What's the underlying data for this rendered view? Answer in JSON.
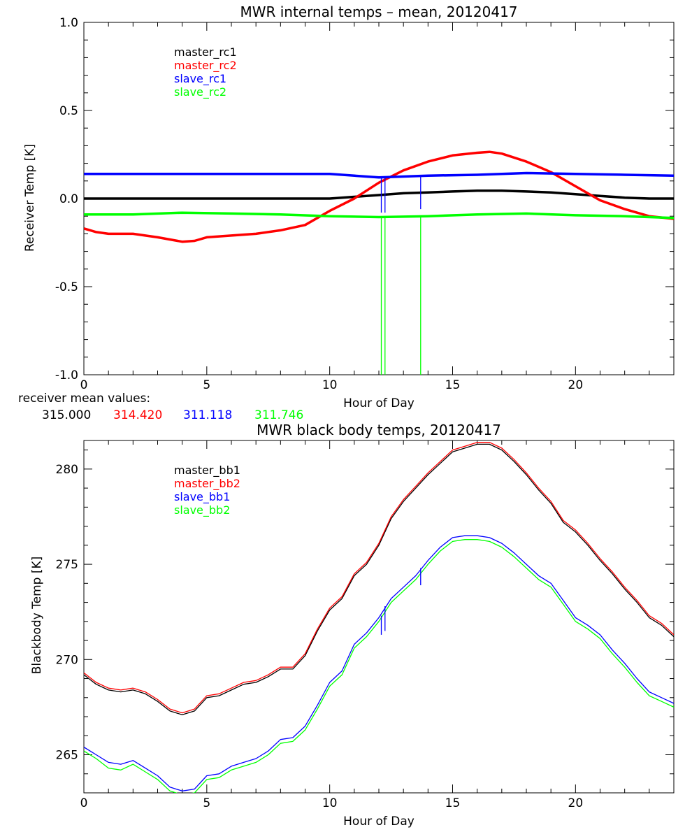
{
  "receiver_mean": {
    "label": "receiver mean values:",
    "values": [
      "315.000",
      "314.420",
      "311.118",
      "311.746"
    ]
  },
  "chart_data": [
    {
      "type": "line",
      "title": "MWR internal temps – mean, 20120417",
      "xlabel": "Hour of Day",
      "ylabel": "Receiver Temp [K]",
      "xlim": [
        0,
        24
      ],
      "ylim": [
        -1.0,
        1.0
      ],
      "xticks": [
        "0",
        "5",
        "10",
        "15",
        "20"
      ],
      "yticks": [
        "-1.0",
        "-0.5",
        "0.0",
        "0.5",
        "1.0"
      ],
      "legend_position": "top-left",
      "grid": false,
      "series": [
        {
          "name": "master_rc1",
          "color": "#000000",
          "x": [
            0,
            2,
            4,
            6,
            8,
            10,
            11,
            12,
            13,
            14,
            15,
            16,
            17,
            18,
            19,
            20,
            21,
            22,
            23,
            24
          ],
          "y": [
            0.0,
            0.0,
            0.0,
            0.0,
            0.0,
            0.0,
            0.01,
            0.02,
            0.03,
            0.035,
            0.04,
            0.045,
            0.045,
            0.04,
            0.035,
            0.025,
            0.015,
            0.005,
            0.0,
            0.0
          ]
        },
        {
          "name": "master_rc2",
          "color": "#ff0000",
          "x": [
            0,
            0.5,
            1,
            2,
            3,
            4,
            4.5,
            5,
            6,
            7,
            8,
            9,
            10,
            11,
            12,
            13,
            14,
            15,
            16,
            16.5,
            17,
            18,
            19,
            20,
            21,
            22,
            23,
            24
          ],
          "y": [
            -0.17,
            -0.19,
            -0.2,
            -0.2,
            -0.22,
            -0.245,
            -0.24,
            -0.22,
            -0.21,
            -0.2,
            -0.18,
            -0.15,
            -0.07,
            0.0,
            0.09,
            0.16,
            0.21,
            0.245,
            0.26,
            0.265,
            0.255,
            0.21,
            0.15,
            0.07,
            -0.01,
            -0.06,
            -0.1,
            -0.115
          ]
        },
        {
          "name": "slave_rc1",
          "color": "#0000ff",
          "x": [
            0,
            2,
            4,
            6,
            8,
            10,
            12,
            13,
            14,
            16,
            18,
            20,
            22,
            24
          ],
          "y": [
            0.14,
            0.14,
            0.14,
            0.14,
            0.14,
            0.14,
            0.12,
            0.125,
            0.13,
            0.135,
            0.145,
            0.14,
            0.135,
            0.13
          ]
        },
        {
          "name": "slave_rc2",
          "color": "#00ff00",
          "x": [
            0,
            2,
            4,
            6,
            8,
            10,
            12,
            14,
            16,
            18,
            20,
            22,
            24
          ],
          "y": [
            -0.09,
            -0.09,
            -0.08,
            -0.085,
            -0.09,
            -0.1,
            -0.105,
            -0.1,
            -0.09,
            -0.085,
            -0.095,
            -0.1,
            -0.11
          ]
        }
      ],
      "spikes": [
        {
          "color": "#00ff00",
          "x": 12.1,
          "y_from": -0.1,
          "y_to": -1.0
        },
        {
          "color": "#00ff00",
          "x": 12.25,
          "y_from": -0.1,
          "y_to": -1.0
        },
        {
          "color": "#00ff00",
          "x": 13.7,
          "y_from": -0.1,
          "y_to": -1.0
        },
        {
          "color": "#0000ff",
          "x": 12.1,
          "y_from": 0.12,
          "y_to": -0.08
        },
        {
          "color": "#0000ff",
          "x": 12.25,
          "y_from": 0.12,
          "y_to": -0.08
        },
        {
          "color": "#0000ff",
          "x": 13.7,
          "y_from": 0.13,
          "y_to": -0.06
        }
      ]
    },
    {
      "type": "line",
      "title": "MWR black body temps, 20120417",
      "xlabel": "Hour of Day",
      "ylabel": "Blackbody Temp [K]",
      "xlim": [
        0,
        24
      ],
      "ylim": [
        263,
        281.5
      ],
      "xticks": [
        "0",
        "5",
        "10",
        "15",
        "20"
      ],
      "yticks": [
        "265",
        "270",
        "275",
        "280"
      ],
      "legend_position": "top-left",
      "grid": false,
      "series": [
        {
          "name": "master_bb1",
          "color": "#000000",
          "x": [
            0,
            0.5,
            1,
            1.5,
            2,
            2.5,
            3,
            3.5,
            4,
            4.5,
            5,
            5.5,
            6,
            6.5,
            7,
            7.5,
            8,
            8.5,
            9,
            9.5,
            10,
            10.5,
            11,
            11.5,
            12,
            12.5,
            13,
            13.5,
            14,
            14.5,
            15,
            15.5,
            16,
            16.5,
            17,
            17.5,
            18,
            18.5,
            19,
            19.5,
            20,
            20.5,
            21,
            21.5,
            22,
            22.5,
            23,
            23.5,
            24
          ],
          "y": [
            269.2,
            268.7,
            268.4,
            268.3,
            268.4,
            268.2,
            267.8,
            267.3,
            267.1,
            267.3,
            268.0,
            268.1,
            268.4,
            268.7,
            268.8,
            269.1,
            269.5,
            269.5,
            270.2,
            271.5,
            272.6,
            273.2,
            274.4,
            275.0,
            276.0,
            277.4,
            278.3,
            279.0,
            279.7,
            280.3,
            280.9,
            281.1,
            281.3,
            281.3,
            281.0,
            280.4,
            279.7,
            278.9,
            278.2,
            277.2,
            276.7,
            276.0,
            275.2,
            274.5,
            273.7,
            273.0,
            272.2,
            271.8,
            271.2
          ]
        },
        {
          "name": "master_bb2",
          "color": "#ff0000",
          "x": [
            0,
            0.5,
            1,
            1.5,
            2,
            2.5,
            3,
            3.5,
            4,
            4.5,
            5,
            5.5,
            6,
            6.5,
            7,
            7.5,
            8,
            8.5,
            9,
            9.5,
            10,
            10.5,
            11,
            11.5,
            12,
            12.5,
            13,
            13.5,
            14,
            14.5,
            15,
            15.5,
            16,
            16.5,
            17,
            17.5,
            18,
            18.5,
            19,
            19.5,
            20,
            20.5,
            21,
            21.5,
            22,
            22.5,
            23,
            23.5,
            24
          ],
          "y": [
            269.3,
            268.8,
            268.5,
            268.4,
            268.5,
            268.3,
            267.9,
            267.4,
            267.2,
            267.4,
            268.1,
            268.2,
            268.5,
            268.8,
            268.9,
            269.2,
            269.6,
            269.6,
            270.3,
            271.6,
            272.7,
            273.3,
            274.5,
            275.1,
            276.1,
            277.5,
            278.4,
            279.1,
            279.8,
            280.4,
            281.0,
            281.2,
            281.4,
            281.4,
            281.1,
            280.5,
            279.8,
            279.0,
            278.3,
            277.3,
            276.8,
            276.1,
            275.3,
            274.6,
            273.8,
            273.1,
            272.3,
            271.9,
            271.3
          ]
        },
        {
          "name": "slave_bb1",
          "color": "#0000ff",
          "x": [
            0,
            0.5,
            1,
            1.5,
            2,
            2.5,
            3,
            3.5,
            4,
            4.5,
            5,
            5.5,
            6,
            6.5,
            7,
            7.5,
            8,
            8.5,
            9,
            9.5,
            10,
            10.5,
            11,
            11.5,
            12,
            12.5,
            13,
            13.5,
            14,
            14.5,
            15,
            15.5,
            16,
            16.5,
            17,
            17.5,
            18,
            18.5,
            19,
            19.5,
            20,
            20.5,
            21,
            21.5,
            22,
            22.5,
            23,
            23.5,
            24
          ],
          "y": [
            265.4,
            265.0,
            264.6,
            264.5,
            264.7,
            264.3,
            263.9,
            263.3,
            263.1,
            263.2,
            263.9,
            264.0,
            264.4,
            264.6,
            264.8,
            265.2,
            265.8,
            265.9,
            266.5,
            267.6,
            268.8,
            269.4,
            270.8,
            271.4,
            272.2,
            273.2,
            273.8,
            274.4,
            275.2,
            275.9,
            276.4,
            276.5,
            276.5,
            276.4,
            276.1,
            275.6,
            275.0,
            274.4,
            274.0,
            273.1,
            272.2,
            271.8,
            271.3,
            270.5,
            269.8,
            269.0,
            268.3,
            268.0,
            267.7
          ]
        },
        {
          "name": "slave_bb2",
          "color": "#00ff00",
          "x": [
            0,
            0.5,
            1,
            1.5,
            2,
            2.5,
            3,
            3.5,
            4,
            4.5,
            5,
            5.5,
            6,
            6.5,
            7,
            7.5,
            8,
            8.5,
            9,
            9.5,
            10,
            10.5,
            11,
            11.5,
            12,
            12.5,
            13,
            13.5,
            14,
            14.5,
            15,
            15.5,
            16,
            16.5,
            17,
            17.5,
            18,
            18.5,
            19,
            19.5,
            20,
            20.5,
            21,
            21.5,
            22,
            22.5,
            23,
            23.5,
            24
          ],
          "y": [
            265.2,
            264.8,
            264.3,
            264.2,
            264.5,
            264.1,
            263.7,
            263.1,
            262.9,
            263.0,
            263.7,
            263.8,
            264.2,
            264.4,
            264.6,
            265.0,
            265.6,
            265.7,
            266.3,
            267.4,
            268.6,
            269.2,
            270.6,
            271.2,
            272.0,
            273.0,
            273.6,
            274.2,
            275.0,
            275.7,
            276.2,
            276.3,
            276.3,
            276.2,
            275.9,
            275.4,
            274.8,
            274.2,
            273.8,
            272.9,
            272.0,
            271.6,
            271.1,
            270.3,
            269.6,
            268.8,
            268.1,
            267.8,
            267.5
          ]
        }
      ],
      "spikes": [
        {
          "color": "#0000ff",
          "x": 12.1,
          "y_from": 272.3,
          "y_to": 271.3
        },
        {
          "color": "#0000ff",
          "x": 12.25,
          "y_from": 272.8,
          "y_to": 271.5
        },
        {
          "color": "#0000ff",
          "x": 13.7,
          "y_from": 274.8,
          "y_to": 273.9
        }
      ]
    }
  ]
}
